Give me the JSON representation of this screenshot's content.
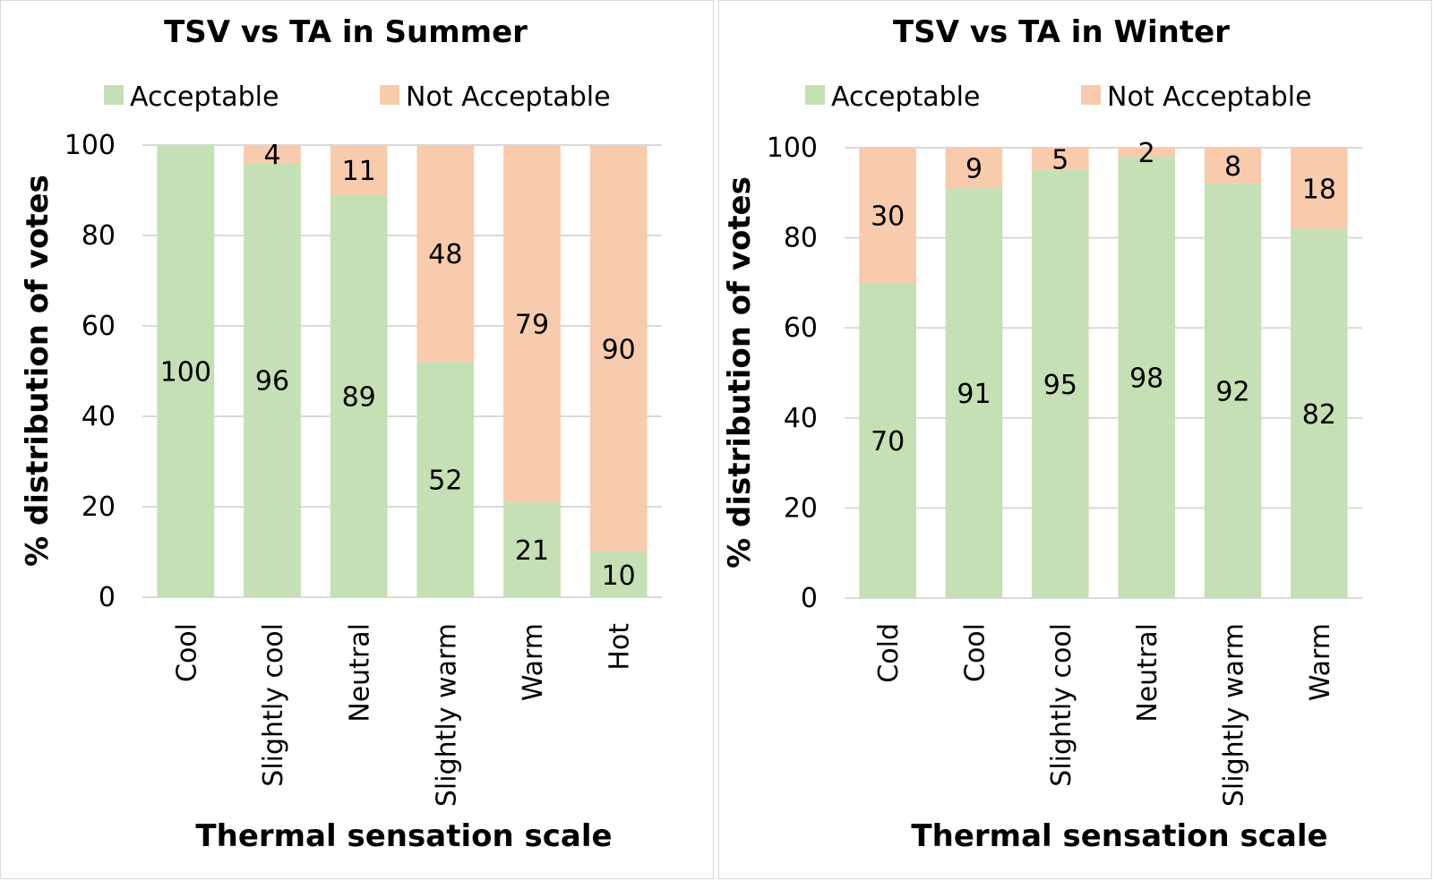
{
  "colors": {
    "acceptable": "#c5e0b4",
    "not_acceptable": "#f8cbad",
    "grid": "#d9d9d9"
  },
  "chart_data": [
    {
      "type": "bar",
      "stacked": true,
      "title": "TSV vs TA in Summer",
      "xlabel": "Thermal sensation scale",
      "ylabel": "% distribution of votes",
      "ylim": [
        0,
        100
      ],
      "yticks": [
        0,
        20,
        40,
        60,
        80,
        100
      ],
      "grid": true,
      "legend": "top",
      "categories": [
        "Cool",
        "Slightly cool",
        "Neutral",
        "Slightly warm",
        "Warm",
        "Hot"
      ],
      "series": [
        {
          "name": "Acceptable",
          "values": [
            100,
            96,
            89,
            52,
            21,
            10
          ]
        },
        {
          "name": "Not Acceptable",
          "values": [
            0,
            4,
            11,
            48,
            79,
            90
          ]
        }
      ]
    },
    {
      "type": "bar",
      "stacked": true,
      "title": "TSV vs TA in Winter",
      "xlabel": "Thermal sensation scale",
      "ylabel": "% distribution of votes",
      "ylim": [
        0,
        100
      ],
      "yticks": [
        0,
        20,
        40,
        60,
        80,
        100
      ],
      "grid": true,
      "legend": "top",
      "categories": [
        "Cold",
        "Cool",
        "Slightly cool",
        "Neutral",
        "Slightly warm",
        "Warm"
      ],
      "series": [
        {
          "name": "Acceptable",
          "values": [
            70,
            91,
            95,
            98,
            92,
            82
          ]
        },
        {
          "name": "Not Acceptable",
          "values": [
            30,
            9,
            5,
            2,
            8,
            18
          ]
        }
      ]
    }
  ]
}
